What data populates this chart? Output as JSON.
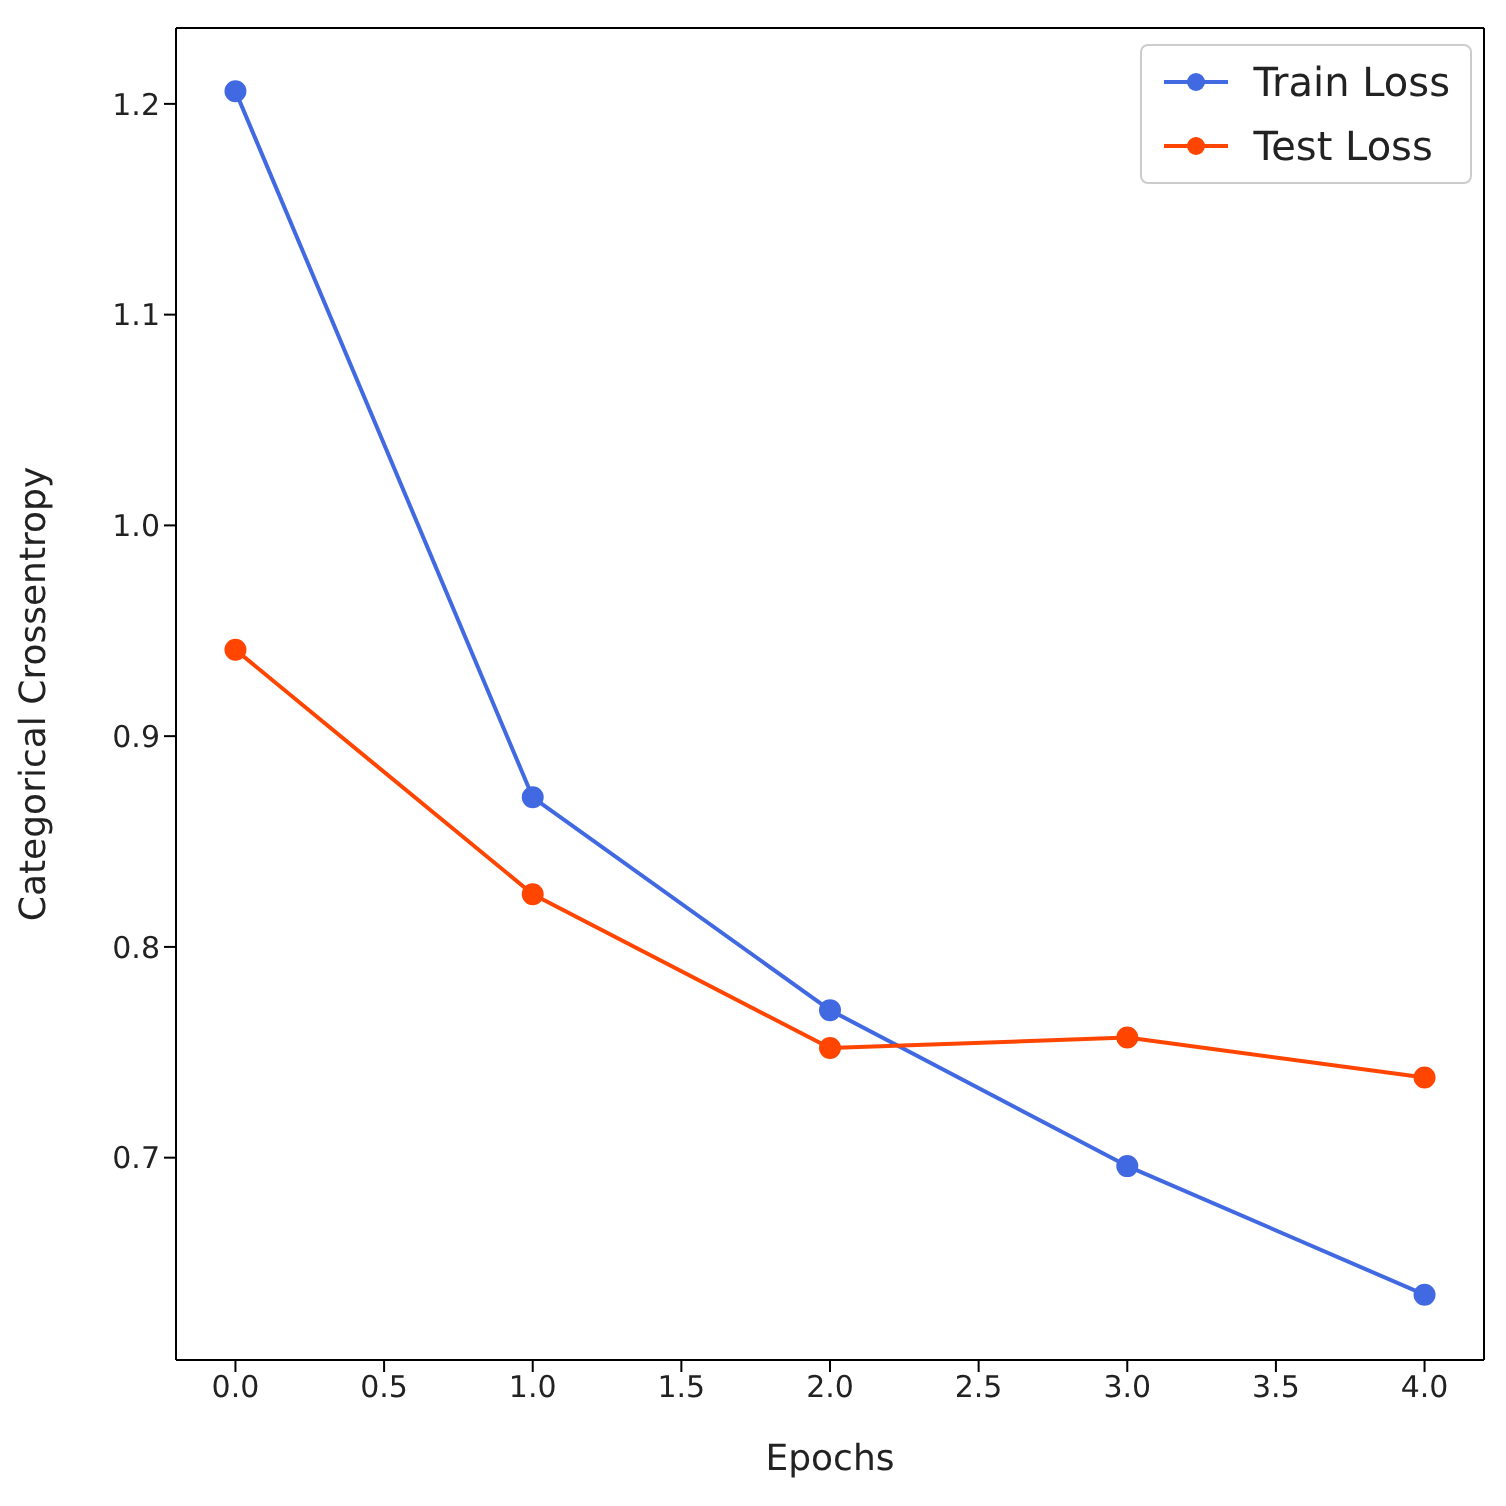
{
  "chart_data": {
    "type": "line",
    "xlabel": "Epochs",
    "ylabel": "Categorical Crossentropy",
    "x": [
      0,
      1,
      2,
      3,
      4
    ],
    "series": [
      {
        "name": "Train Loss",
        "color": "#4169e1",
        "values": [
          1.206,
          0.871,
          0.77,
          0.696,
          0.635
        ]
      },
      {
        "name": "Test Loss",
        "color": "#ff4500",
        "values": [
          0.941,
          0.825,
          0.752,
          0.757,
          0.738
        ]
      }
    ],
    "xlim": [
      -0.2,
      4.2
    ],
    "xticks": [
      {
        "value": 0,
        "label": "0.0"
      },
      {
        "value": 0.5,
        "label": "0.5"
      },
      {
        "value": 1,
        "label": "1.0"
      },
      {
        "value": 1.5,
        "label": "1.5"
      },
      {
        "value": 2,
        "label": "2.0"
      },
      {
        "value": 2.5,
        "label": "2.5"
      },
      {
        "value": 3,
        "label": "3.0"
      },
      {
        "value": 3.5,
        "label": "3.5"
      },
      {
        "value": 4,
        "label": "4.0"
      }
    ],
    "ylim": [
      0.604,
      1.236
    ],
    "yticks": [
      {
        "value": 0.7,
        "label": "0.7"
      },
      {
        "value": 0.8,
        "label": "0.8"
      },
      {
        "value": 0.9,
        "label": "0.9"
      },
      {
        "value": 1.0,
        "label": "1.0"
      },
      {
        "value": 1.1,
        "label": "1.1"
      },
      {
        "value": 1.2,
        "label": "1.2"
      }
    ],
    "legend": "top right",
    "marker": "circle",
    "line_style": "solid",
    "grid": false
  }
}
